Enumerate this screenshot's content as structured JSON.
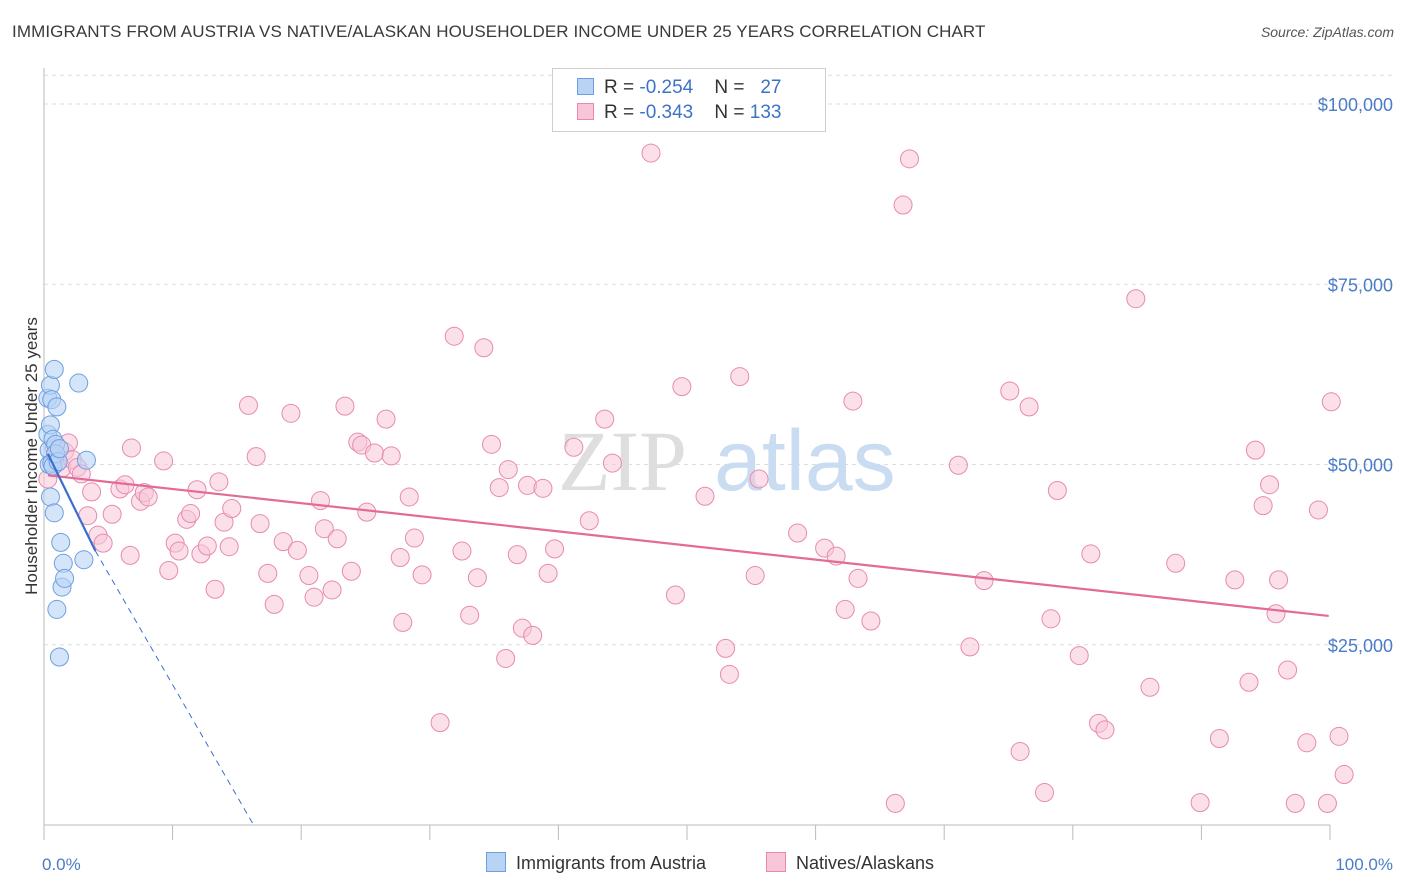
{
  "title": "IMMIGRANTS FROM AUSTRIA VS NATIVE/ALASKAN HOUSEHOLDER INCOME UNDER 25 YEARS CORRELATION CHART",
  "source": "Source: ZipAtlas.com",
  "watermark": {
    "zip": "ZIP",
    "atlas": "atlas"
  },
  "legend": {
    "rows": [
      {
        "r_label": "R = ",
        "r_value": "-0.254",
        "n_label": "N = ",
        "n_value": "27"
      },
      {
        "r_label": "R = ",
        "r_value": "-0.343",
        "n_label": "N = ",
        "n_value": "133"
      }
    ]
  },
  "colors": {
    "austria_fill": "#b9d3f5",
    "austria_stroke": "#6e9fe0",
    "austria_line": "#3a6fcf",
    "natives_fill": "#f8c6d8",
    "natives_stroke": "#e88aae",
    "natives_line": "#e26b98",
    "grid": "#dddddd",
    "tick_text": "#4a7cc9"
  },
  "chart_data": {
    "type": "scatter",
    "title": "IMMIGRANTS FROM AUSTRIA VS NATIVE/ALASKAN HOUSEHOLDER INCOME UNDER 25 YEARS CORRELATION CHART",
    "xlabel": "",
    "ylabel": "Householder Income Under 25 years",
    "xlim": [
      0,
      100
    ],
    "ylim": [
      0,
      105000
    ],
    "x_tick_labels": [
      "0.0%",
      "100.0%"
    ],
    "y_ticks": [
      25000,
      50000,
      75000,
      100000
    ],
    "y_tick_labels": [
      "$25,000",
      "$50,000",
      "$75,000",
      "$100,000"
    ],
    "grid": true,
    "legend_position": "top-center",
    "series": [
      {
        "name": "Immigrants from Austria",
        "R": -0.254,
        "N": 27,
        "trend": {
          "x0": 0.3,
          "y0": 51500,
          "x1": 4.0,
          "y1": 38000,
          "dash_to_x": 16.3,
          "dash_to_y": 0
        },
        "points": [
          [
            0.3,
            59200
          ],
          [
            0.3,
            54200
          ],
          [
            0.4,
            52000
          ],
          [
            0.4,
            50000
          ],
          [
            0.5,
            61000
          ],
          [
            0.5,
            55500
          ],
          [
            0.5,
            45500
          ],
          [
            0.6,
            50200
          ],
          [
            0.6,
            59000
          ],
          [
            0.7,
            53500
          ],
          [
            0.7,
            49800
          ],
          [
            0.8,
            63200
          ],
          [
            0.8,
            43300
          ],
          [
            0.9,
            52800
          ],
          [
            0.9,
            51500
          ],
          [
            1.0,
            58000
          ],
          [
            1.0,
            29900
          ],
          [
            1.1,
            50400
          ],
          [
            1.2,
            52200
          ],
          [
            1.2,
            23300
          ],
          [
            1.3,
            39200
          ],
          [
            1.4,
            33000
          ],
          [
            1.5,
            36300
          ],
          [
            1.6,
            34200
          ],
          [
            2.7,
            61300
          ],
          [
            3.3,
            50600
          ],
          [
            3.1,
            36800
          ]
        ]
      },
      {
        "name": "Natives/Alaskans",
        "R": -0.343,
        "N": 133,
        "trend": {
          "x0": 0.3,
          "y0": 48500,
          "x1": 99.9,
          "y1": 29000
        },
        "points": [
          [
            0.3,
            48000
          ],
          [
            0.8,
            52300
          ],
          [
            1.0,
            50200
          ],
          [
            1.4,
            49500
          ],
          [
            1.6,
            51800
          ],
          [
            1.9,
            53000
          ],
          [
            2.2,
            50700
          ],
          [
            2.6,
            49600
          ],
          [
            2.9,
            48700
          ],
          [
            3.4,
            42900
          ],
          [
            3.7,
            46200
          ],
          [
            4.2,
            40200
          ],
          [
            4.6,
            39100
          ],
          [
            5.3,
            43100
          ],
          [
            5.9,
            46600
          ],
          [
            6.3,
            47200
          ],
          [
            6.7,
            37400
          ],
          [
            6.8,
            52300
          ],
          [
            7.5,
            44900
          ],
          [
            7.8,
            46100
          ],
          [
            8.1,
            45500
          ],
          [
            9.3,
            50500
          ],
          [
            9.7,
            35300
          ],
          [
            10.2,
            39100
          ],
          [
            10.5,
            38000
          ],
          [
            11.1,
            42400
          ],
          [
            11.4,
            43200
          ],
          [
            11.9,
            46500
          ],
          [
            12.2,
            37600
          ],
          [
            12.7,
            38700
          ],
          [
            13.3,
            32700
          ],
          [
            13.6,
            47600
          ],
          [
            14.0,
            42000
          ],
          [
            14.4,
            38600
          ],
          [
            14.6,
            43900
          ],
          [
            15.9,
            58200
          ],
          [
            16.5,
            51100
          ],
          [
            16.8,
            41800
          ],
          [
            17.4,
            34900
          ],
          [
            17.9,
            30600
          ],
          [
            18.6,
            39300
          ],
          [
            19.2,
            57100
          ],
          [
            19.7,
            38100
          ],
          [
            20.6,
            34600
          ],
          [
            21.0,
            31600
          ],
          [
            21.5,
            45000
          ],
          [
            21.8,
            41100
          ],
          [
            22.4,
            32600
          ],
          [
            22.8,
            39700
          ],
          [
            23.4,
            58100
          ],
          [
            23.9,
            35200
          ],
          [
            24.4,
            53100
          ],
          [
            24.7,
            52700
          ],
          [
            25.1,
            43400
          ],
          [
            25.7,
            51600
          ],
          [
            26.6,
            56300
          ],
          [
            27.0,
            51200
          ],
          [
            27.7,
            37100
          ],
          [
            27.9,
            28100
          ],
          [
            28.4,
            45500
          ],
          [
            28.8,
            39800
          ],
          [
            29.4,
            34700
          ],
          [
            30.8,
            14200
          ],
          [
            31.9,
            67800
          ],
          [
            32.5,
            38000
          ],
          [
            33.1,
            29100
          ],
          [
            33.7,
            34300
          ],
          [
            34.2,
            66200
          ],
          [
            34.8,
            52800
          ],
          [
            35.4,
            46800
          ],
          [
            35.9,
            23100
          ],
          [
            36.1,
            49300
          ],
          [
            36.8,
            37500
          ],
          [
            37.2,
            27300
          ],
          [
            37.6,
            47100
          ],
          [
            38.0,
            26300
          ],
          [
            38.8,
            46700
          ],
          [
            39.2,
            34900
          ],
          [
            39.7,
            38300
          ],
          [
            41.2,
            52400
          ],
          [
            42.4,
            42200
          ],
          [
            43.6,
            56300
          ],
          [
            44.2,
            50200
          ],
          [
            47.2,
            93200
          ],
          [
            49.1,
            31900
          ],
          [
            49.6,
            60800
          ],
          [
            51.4,
            45600
          ],
          [
            53.0,
            24500
          ],
          [
            53.3,
            20900
          ],
          [
            54.1,
            62200
          ],
          [
            55.3,
            34600
          ],
          [
            55.6,
            48000
          ],
          [
            58.6,
            40500
          ],
          [
            60.7,
            38400
          ],
          [
            61.6,
            37300
          ],
          [
            62.3,
            29900
          ],
          [
            62.9,
            58800
          ],
          [
            63.3,
            34200
          ],
          [
            64.3,
            28300
          ],
          [
            66.2,
            3000
          ],
          [
            66.8,
            86000
          ],
          [
            67.3,
            92400
          ],
          [
            71.1,
            49900
          ],
          [
            72.0,
            24700
          ],
          [
            73.1,
            33900
          ],
          [
            75.1,
            60200
          ],
          [
            75.9,
            10200
          ],
          [
            76.6,
            58000
          ],
          [
            77.8,
            4500
          ],
          [
            78.3,
            28600
          ],
          [
            78.8,
            46400
          ],
          [
            80.5,
            23500
          ],
          [
            81.4,
            37600
          ],
          [
            82.0,
            14100
          ],
          [
            82.5,
            13200
          ],
          [
            84.9,
            73000
          ],
          [
            86.0,
            19100
          ],
          [
            88.0,
            36300
          ],
          [
            89.9,
            3100
          ],
          [
            91.4,
            12000
          ],
          [
            92.6,
            34000
          ],
          [
            93.7,
            19800
          ],
          [
            94.2,
            52000
          ],
          [
            94.8,
            44300
          ],
          [
            95.3,
            47200
          ],
          [
            95.8,
            29300
          ],
          [
            96.0,
            34000
          ],
          [
            96.7,
            21500
          ],
          [
            97.3,
            3000
          ],
          [
            98.2,
            11400
          ],
          [
            99.1,
            43700
          ],
          [
            99.8,
            3000
          ],
          [
            100.1,
            58700
          ],
          [
            100.7,
            12300
          ],
          [
            101.1,
            7000
          ]
        ]
      }
    ]
  },
  "bottom_legend": [
    {
      "label": "Immigrants from Austria"
    },
    {
      "label": "Natives/Alaskans"
    }
  ]
}
